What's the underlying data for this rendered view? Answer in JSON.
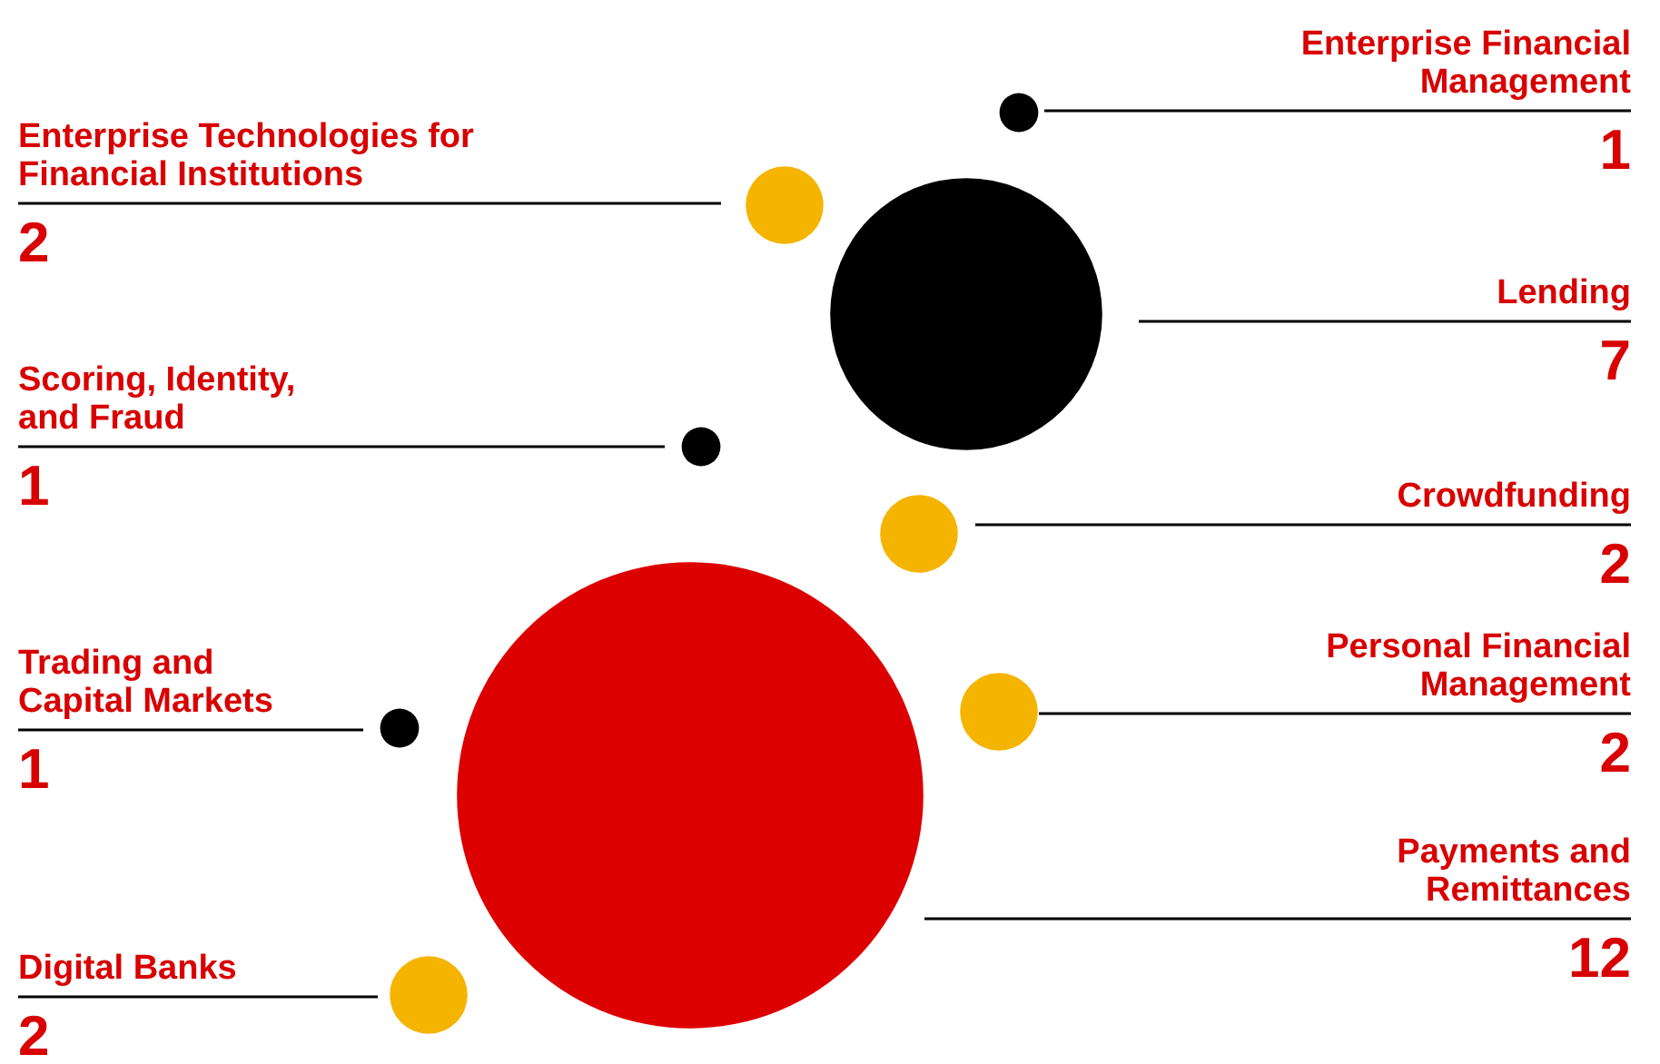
{
  "chart_data": {
    "type": "other",
    "data_labels": true,
    "categories": [
      "Enterprise Financial Management",
      "Enterprise Technologies for Financial Institutions",
      "Lending",
      "Scoring, Identity, and Fraud",
      "Crowdfunding",
      "Trading and Capital Markets",
      "Personal Financial Management",
      "Payments and Remittances",
      "Digital Banks"
    ],
    "values": [
      1,
      2,
      7,
      1,
      2,
      1,
      2,
      12,
      2
    ],
    "colors": [
      "#000000",
      "#f5b400",
      "#000000",
      "#000000",
      "#f5b400",
      "#000000",
      "#f5b400",
      "#dd0000",
      "#f5b400"
    ]
  }
}
